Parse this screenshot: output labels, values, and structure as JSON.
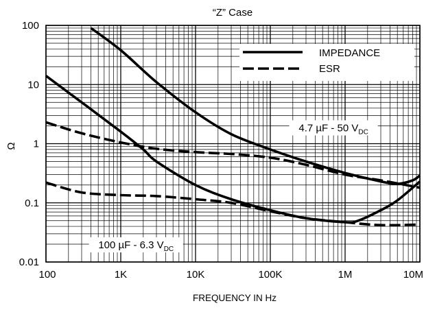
{
  "chart_data": {
    "type": "line",
    "title": "“Z” Case",
    "xlabel": "FREQUENCY IN Hz",
    "ylabel": "Ω",
    "x_scale": "log",
    "y_scale": "log",
    "xlim": [
      100,
      10000000
    ],
    "ylim": [
      0.01,
      100
    ],
    "grid": true,
    "x_ticks": [
      {
        "value": 100,
        "label": "100"
      },
      {
        "value": 1000,
        "label": "1K"
      },
      {
        "value": 10000,
        "label": "10K"
      },
      {
        "value": 100000,
        "label": "100K"
      },
      {
        "value": 1000000,
        "label": "1M"
      },
      {
        "value": 10000000,
        "label": "10M"
      }
    ],
    "y_ticks": [
      {
        "value": 100,
        "label": "100"
      },
      {
        "value": 10,
        "label": "10"
      },
      {
        "value": 1,
        "label": "1"
      },
      {
        "value": 0.1,
        "label": "0.1"
      },
      {
        "value": 0.01,
        "label": "0.01"
      }
    ],
    "legend": {
      "placement": "top-right",
      "entries": [
        {
          "label": "IMPEDANCE",
          "style": "solid"
        },
        {
          "label": "ESR",
          "style": "dashed"
        }
      ]
    },
    "annotations": [
      {
        "id": "cap47",
        "main": "4.7 µF - 50 V",
        "sub": "DC",
        "x": 700000,
        "y": 1.85
      },
      {
        "id": "cap100",
        "main": "100 µF - 6.3 V",
        "sub": "DC",
        "x": 1600,
        "y": 0.0195
      }
    ],
    "series": [
      {
        "id": "z-47uf",
        "style": "solid",
        "points": [
          [
            400,
            90
          ],
          [
            1000,
            38
          ],
          [
            3000,
            11
          ],
          [
            10000,
            3.4
          ],
          [
            30000,
            1.45
          ],
          [
            100000,
            0.8
          ],
          [
            300000,
            0.5
          ],
          [
            1000000,
            0.32
          ],
          [
            3000000,
            0.23
          ],
          [
            5000000,
            0.21
          ],
          [
            8000000,
            0.24
          ],
          [
            10000000,
            0.29
          ]
        ]
      },
      {
        "id": "esr-47uf",
        "style": "dashed",
        "points": [
          [
            100,
            2.3
          ],
          [
            300,
            1.5
          ],
          [
            1000,
            1.05
          ],
          [
            3000,
            0.82
          ],
          [
            10000,
            0.72
          ],
          [
            30000,
            0.67
          ],
          [
            100000,
            0.58
          ],
          [
            300000,
            0.44
          ],
          [
            1000000,
            0.3
          ],
          [
            3000000,
            0.24
          ],
          [
            10000000,
            0.18
          ]
        ]
      },
      {
        "id": "z-100uf",
        "style": "solid",
        "points": [
          [
            100,
            14
          ],
          [
            300,
            5
          ],
          [
            1000,
            1.6
          ],
          [
            2000,
            0.8
          ],
          [
            3000,
            0.5
          ],
          [
            10000,
            0.2
          ],
          [
            30000,
            0.115
          ],
          [
            100000,
            0.075
          ],
          [
            300000,
            0.055
          ],
          [
            1000000,
            0.047
          ],
          [
            1500000,
            0.05
          ],
          [
            3000000,
            0.075
          ],
          [
            5000000,
            0.11
          ],
          [
            10000000,
            0.23
          ]
        ]
      },
      {
        "id": "esr-100uf",
        "style": "dashed",
        "points": [
          [
            100,
            0.22
          ],
          [
            300,
            0.15
          ],
          [
            1000,
            0.135
          ],
          [
            3000,
            0.13
          ],
          [
            10000,
            0.115
          ],
          [
            30000,
            0.1
          ],
          [
            100000,
            0.072
          ],
          [
            300000,
            0.055
          ],
          [
            1000000,
            0.047
          ],
          [
            3000000,
            0.042
          ],
          [
            10000000,
            0.043
          ]
        ]
      }
    ]
  }
}
